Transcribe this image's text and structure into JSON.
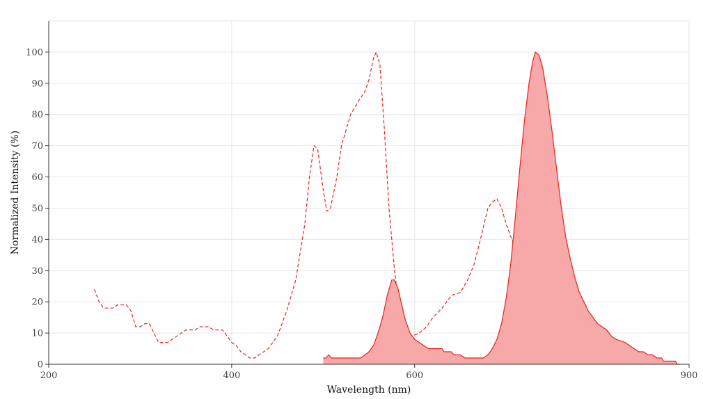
{
  "chart_data": {
    "type": "area",
    "xlabel": "Wavelength (nm)",
    "ylabel": "Normalized Intensity (%)",
    "xlim": [
      200,
      900
    ],
    "ylim": [
      0,
      110
    ],
    "x_ticks": [
      200,
      400,
      600,
      900
    ],
    "y_ticks": [
      0,
      10,
      20,
      30,
      40,
      50,
      60,
      70,
      80,
      90,
      100
    ],
    "grid": true,
    "series": [
      {
        "style": "dashed-line",
        "color": "#e8221b",
        "points": [
          [
            250,
            24
          ],
          [
            255,
            20
          ],
          [
            260,
            18
          ],
          [
            265,
            18
          ],
          [
            270,
            18
          ],
          [
            275,
            19
          ],
          [
            285,
            19
          ],
          [
            290,
            17
          ],
          [
            295,
            12
          ],
          [
            300,
            12
          ],
          [
            305,
            13
          ],
          [
            310,
            13
          ],
          [
            315,
            10
          ],
          [
            320,
            7
          ],
          [
            330,
            7
          ],
          [
            340,
            9
          ],
          [
            350,
            11
          ],
          [
            360,
            11
          ],
          [
            365,
            12
          ],
          [
            375,
            12
          ],
          [
            380,
            11
          ],
          [
            390,
            11
          ],
          [
            395,
            9
          ],
          [
            400,
            7
          ],
          [
            405,
            6
          ],
          [
            410,
            4
          ],
          [
            415,
            3
          ],
          [
            420,
            2
          ],
          [
            425,
            2
          ],
          [
            430,
            3
          ],
          [
            440,
            5
          ],
          [
            450,
            9
          ],
          [
            460,
            17
          ],
          [
            470,
            27
          ],
          [
            480,
            45
          ],
          [
            485,
            60
          ],
          [
            490,
            70
          ],
          [
            494,
            69
          ],
          [
            500,
            56
          ],
          [
            504,
            49
          ],
          [
            508,
            50
          ],
          [
            515,
            60
          ],
          [
            520,
            70
          ],
          [
            530,
            80
          ],
          [
            540,
            85
          ],
          [
            545,
            87
          ],
          [
            550,
            91
          ],
          [
            555,
            98
          ],
          [
            558,
            100
          ],
          [
            562,
            96
          ],
          [
            567,
            75
          ],
          [
            572,
            50
          ],
          [
            578,
            30
          ],
          [
            583,
            18
          ],
          [
            590,
            12
          ],
          [
            597,
            9
          ],
          [
            605,
            10
          ],
          [
            613,
            12
          ],
          [
            620,
            15
          ],
          [
            630,
            18
          ],
          [
            640,
            22
          ],
          [
            650,
            23
          ],
          [
            658,
            27
          ],
          [
            665,
            32
          ],
          [
            672,
            40
          ],
          [
            680,
            50
          ],
          [
            685,
            52
          ],
          [
            690,
            53
          ],
          [
            695,
            50
          ],
          [
            700,
            45
          ],
          [
            710,
            37
          ],
          [
            720,
            25
          ],
          [
            730,
            14
          ],
          [
            737,
            7
          ],
          [
            745,
            3
          ],
          [
            750,
            2
          ],
          [
            755,
            1
          ],
          [
            760,
            0
          ]
        ]
      },
      {
        "style": "filled-area",
        "color": "#e8221b",
        "fill": "#f7a8a8",
        "points": [
          [
            500,
            2
          ],
          [
            503,
            2
          ],
          [
            506,
            3
          ],
          [
            509,
            2
          ],
          [
            520,
            2
          ],
          [
            530,
            2
          ],
          [
            541,
            2
          ],
          [
            546,
            3
          ],
          [
            550,
            4
          ],
          [
            555,
            6
          ],
          [
            560,
            10
          ],
          [
            565,
            15
          ],
          [
            570,
            22
          ],
          [
            575,
            27
          ],
          [
            578,
            27
          ],
          [
            582,
            24
          ],
          [
            586,
            19
          ],
          [
            590,
            14
          ],
          [
            595,
            10
          ],
          [
            600,
            8
          ],
          [
            605,
            7
          ],
          [
            610,
            6
          ],
          [
            615,
            5
          ],
          [
            620,
            5
          ],
          [
            630,
            5
          ],
          [
            632,
            4
          ],
          [
            640,
            4
          ],
          [
            643,
            3
          ],
          [
            650,
            3
          ],
          [
            655,
            2
          ],
          [
            675,
            2
          ],
          [
            680,
            3
          ],
          [
            685,
            5
          ],
          [
            690,
            8
          ],
          [
            695,
            13
          ],
          [
            700,
            21
          ],
          [
            705,
            32
          ],
          [
            710,
            47
          ],
          [
            715,
            63
          ],
          [
            720,
            78
          ],
          [
            725,
            90
          ],
          [
            729,
            97
          ],
          [
            732,
            100
          ],
          [
            736,
            99
          ],
          [
            740,
            95
          ],
          [
            745,
            86
          ],
          [
            750,
            75
          ],
          [
            755,
            63
          ],
          [
            760,
            51
          ],
          [
            765,
            41
          ],
          [
            770,
            34
          ],
          [
            775,
            28
          ],
          [
            780,
            23
          ],
          [
            785,
            20
          ],
          [
            790,
            17
          ],
          [
            795,
            15
          ],
          [
            800,
            13
          ],
          [
            805,
            12
          ],
          [
            810,
            11
          ],
          [
            815,
            9
          ],
          [
            820,
            8
          ],
          [
            830,
            7
          ],
          [
            835,
            6
          ],
          [
            840,
            5
          ],
          [
            845,
            4
          ],
          [
            850,
            4
          ],
          [
            855,
            3
          ],
          [
            860,
            3
          ],
          [
            865,
            2
          ],
          [
            870,
            2
          ],
          [
            872,
            1
          ],
          [
            885,
            1
          ],
          [
            887,
            0
          ],
          [
            890,
            0
          ]
        ]
      }
    ]
  }
}
